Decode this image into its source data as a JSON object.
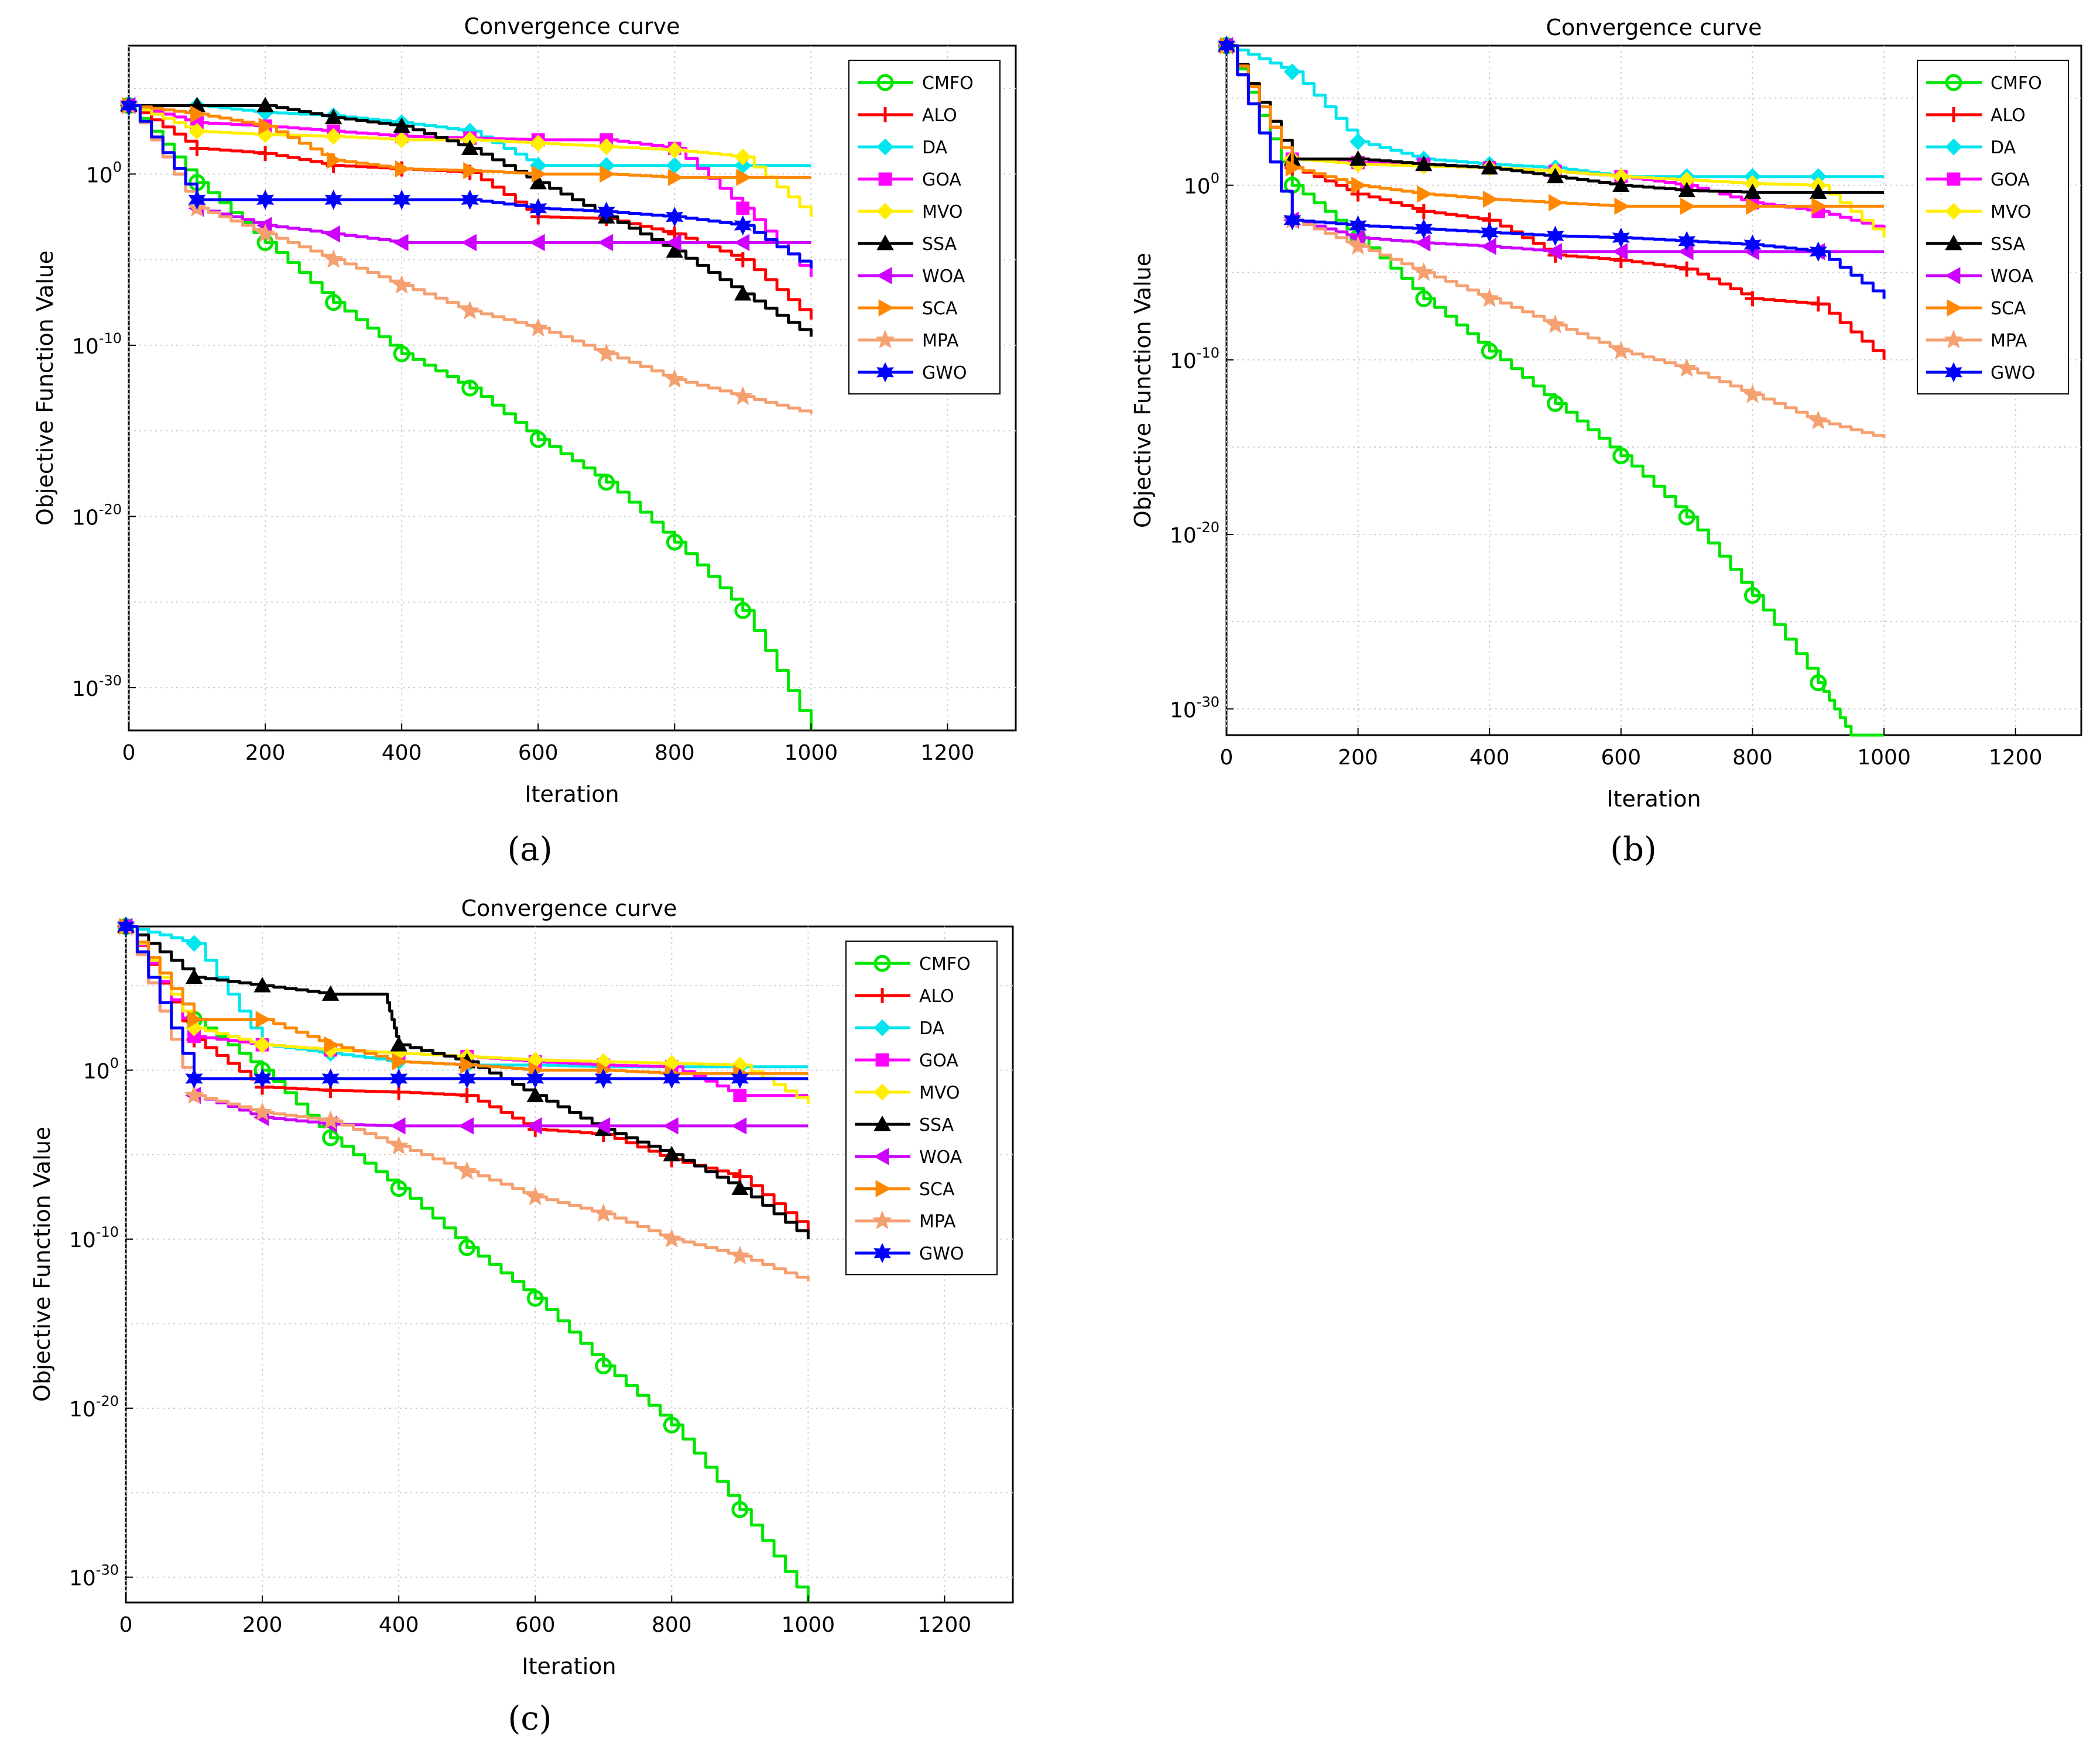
{
  "chart_data": [
    {
      "type": "line",
      "panel_label": "(a)",
      "title": "Convergence curve",
      "xlabel": "Iteration",
      "ylabel": "Objective Function Value",
      "yscale": "log",
      "xlim": [
        0,
        1300
      ],
      "ylim_exp": [
        -32.5,
        7.5
      ],
      "x_ticks": [
        0,
        200,
        400,
        600,
        800,
        1000,
        1200
      ],
      "y_tick_exps": [
        0,
        -10,
        -20,
        -30
      ],
      "grid": true,
      "legend_position": "top-right",
      "series": [
        {
          "name": "CMFO",
          "color": "#00e600",
          "marker": "circle",
          "x": [
            0,
            100,
            200,
            300,
            400,
            500,
            600,
            700,
            800,
            900,
            1000
          ],
          "y_exp": [
            4,
            -0.5,
            -4,
            -7.5,
            -10.5,
            -12.5,
            -15.5,
            -18,
            -21.5,
            -25.5,
            -32.5
          ]
        },
        {
          "name": "ALO",
          "color": "#ff0000",
          "marker": "plus",
          "x": [
            0,
            100,
            200,
            300,
            400,
            500,
            600,
            700,
            800,
            900,
            1000
          ],
          "y_exp": [
            4,
            1.5,
            1.2,
            0.5,
            0.3,
            0.1,
            -2.5,
            -2.6,
            -3.5,
            -5,
            -8.5
          ]
        },
        {
          "name": "DA",
          "color": "#00e5ee",
          "marker": "diamond",
          "x": [
            0,
            100,
            200,
            300,
            400,
            500,
            600,
            700,
            800,
            900,
            1000
          ],
          "y_exp": [
            4,
            4,
            3.6,
            3.4,
            3.0,
            2.5,
            0.5,
            0.5,
            0.5,
            0.5,
            0.5
          ]
        },
        {
          "name": "GOA",
          "color": "#ff00ff",
          "marker": "square",
          "x": [
            0,
            100,
            200,
            300,
            400,
            500,
            600,
            700,
            800,
            900,
            1000
          ],
          "y_exp": [
            4,
            3,
            2.8,
            2.5,
            2.2,
            2.1,
            2.0,
            2.0,
            1.5,
            -2,
            -6
          ]
        },
        {
          "name": "MVO",
          "color": "#ffee00",
          "marker": "diamond",
          "x": [
            0,
            100,
            200,
            300,
            400,
            500,
            600,
            700,
            800,
            900,
            1000
          ],
          "y_exp": [
            4,
            2.5,
            2.3,
            2.2,
            2.0,
            2.0,
            1.8,
            1.6,
            1.4,
            1.0,
            -2.5
          ]
        },
        {
          "name": "SSA",
          "color": "#000000",
          "marker": "triangle-up",
          "x": [
            0,
            100,
            200,
            300,
            400,
            500,
            600,
            700,
            800,
            900,
            1000
          ],
          "y_exp": [
            4,
            4,
            4,
            3.3,
            2.8,
            1.5,
            -0.5,
            -2.5,
            -4.5,
            -7,
            -9.5
          ]
        },
        {
          "name": "WOA",
          "color": "#cc00ff",
          "marker": "triangle-left",
          "x": [
            0,
            100,
            200,
            300,
            400,
            500,
            600,
            700,
            800,
            900,
            1000
          ],
          "y_exp": [
            4,
            -2,
            -3,
            -3.5,
            -4,
            -4,
            -4,
            -4,
            -4,
            -4,
            -4
          ]
        },
        {
          "name": "SCA",
          "color": "#ff8800",
          "marker": "triangle-right",
          "x": [
            0,
            100,
            200,
            300,
            400,
            500,
            600,
            700,
            800,
            900,
            1000
          ],
          "y_exp": [
            4,
            3.5,
            2.8,
            0.8,
            0.3,
            0.2,
            0,
            0,
            -0.2,
            -0.2,
            -0.2
          ]
        },
        {
          "name": "MPA",
          "color": "#f5a070",
          "marker": "star",
          "x": [
            0,
            100,
            200,
            300,
            400,
            500,
            600,
            700,
            800,
            900,
            1000
          ],
          "y_exp": [
            4,
            -2,
            -3.5,
            -5,
            -6.5,
            -8,
            -9,
            -10.5,
            -12,
            -13,
            -14
          ]
        },
        {
          "name": "GWO",
          "color": "#0000ff",
          "marker": "hexagram",
          "x": [
            0,
            100,
            200,
            300,
            400,
            500,
            600,
            700,
            800,
            900,
            1000
          ],
          "y_exp": [
            4,
            -1.5,
            -1.5,
            -1.5,
            -1.5,
            -1.5,
            -2,
            -2.2,
            -2.5,
            -3,
            -5.5
          ]
        }
      ]
    },
    {
      "type": "line",
      "panel_label": "(b)",
      "title": "Convergence curve",
      "xlabel": "Iteration",
      "ylabel": "Objective Function Value",
      "yscale": "log",
      "xlim": [
        0,
        1300
      ],
      "ylim_exp": [
        -31.5,
        8
      ],
      "x_ticks": [
        0,
        200,
        400,
        600,
        800,
        1000,
        1200
      ],
      "y_tick_exps": [
        0,
        -10,
        -20,
        -30
      ],
      "grid": true,
      "legend_position": "top-right",
      "series": [
        {
          "name": "CMFO",
          "color": "#00e600",
          "marker": "circle",
          "x": [
            0,
            100,
            200,
            300,
            400,
            500,
            600,
            700,
            800,
            900,
            950,
            1000
          ],
          "y_exp": [
            8,
            0,
            -3,
            -6.5,
            -9.5,
            -12.5,
            -15.5,
            -19,
            -23.5,
            -28.5,
            -31.5,
            -31.5
          ]
        },
        {
          "name": "ALO",
          "color": "#ff0000",
          "marker": "plus",
          "x": [
            0,
            100,
            200,
            300,
            400,
            500,
            600,
            700,
            800,
            900,
            1000
          ],
          "y_exp": [
            8,
            1,
            -0.5,
            -1.5,
            -2,
            -4,
            -4.3,
            -4.8,
            -6.5,
            -6.8,
            -10
          ]
        },
        {
          "name": "DA",
          "color": "#00e5ee",
          "marker": "diamond",
          "x": [
            0,
            100,
            200,
            300,
            400,
            500,
            600,
            700,
            800,
            900,
            1000
          ],
          "y_exp": [
            8,
            6.5,
            2.5,
            1.5,
            1.2,
            1,
            0.5,
            0.5,
            0.5,
            0.5,
            0.5
          ]
        },
        {
          "name": "GOA",
          "color": "#ff00ff",
          "marker": "square",
          "x": [
            0,
            100,
            200,
            300,
            400,
            500,
            600,
            700,
            800,
            900,
            1000
          ],
          "y_exp": [
            8,
            1.5,
            1.3,
            1.2,
            1.0,
            0.8,
            0.5,
            0,
            -1,
            -1.5,
            -2.5
          ]
        },
        {
          "name": "MVO",
          "color": "#ffee00",
          "marker": "diamond",
          "x": [
            0,
            100,
            200,
            300,
            400,
            500,
            600,
            700,
            800,
            900,
            1000
          ],
          "y_exp": [
            8,
            1.5,
            1.2,
            1.1,
            1.0,
            0.8,
            0.5,
            0.3,
            0.1,
            0,
            -3
          ]
        },
        {
          "name": "SSA",
          "color": "#000000",
          "marker": "triangle-up",
          "x": [
            0,
            100,
            200,
            300,
            400,
            500,
            600,
            700,
            800,
            900,
            1000
          ],
          "y_exp": [
            8,
            1.5,
            1.5,
            1.2,
            1,
            0.5,
            0,
            -0.3,
            -0.4,
            -0.4,
            -0.4
          ]
        },
        {
          "name": "WOA",
          "color": "#cc00ff",
          "marker": "triangle-left",
          "x": [
            0,
            100,
            200,
            300,
            400,
            500,
            600,
            700,
            800,
            900,
            1000
          ],
          "y_exp": [
            8,
            -2,
            -3,
            -3.3,
            -3.5,
            -3.8,
            -3.8,
            -3.8,
            -3.8,
            -3.8,
            -3.8
          ]
        },
        {
          "name": "SCA",
          "color": "#ff8800",
          "marker": "triangle-right",
          "x": [
            0,
            100,
            200,
            300,
            400,
            500,
            600,
            700,
            800,
            900,
            1000
          ],
          "y_exp": [
            8,
            1,
            0,
            -0.5,
            -0.8,
            -1,
            -1.2,
            -1.2,
            -1.2,
            -1.2,
            -1.2
          ]
        },
        {
          "name": "MPA",
          "color": "#f5a070",
          "marker": "star",
          "x": [
            0,
            100,
            200,
            300,
            400,
            500,
            600,
            700,
            800,
            900,
            1000
          ],
          "y_exp": [
            8,
            -2,
            -3.5,
            -5,
            -6.5,
            -8,
            -9.5,
            -10.5,
            -12,
            -13.5,
            -14.5
          ]
        },
        {
          "name": "GWO",
          "color": "#0000ff",
          "marker": "hexagram",
          "x": [
            0,
            100,
            200,
            300,
            400,
            500,
            600,
            700,
            800,
            900,
            1000
          ],
          "y_exp": [
            8,
            -2,
            -2.3,
            -2.5,
            -2.7,
            -2.9,
            -3,
            -3.2,
            -3.4,
            -3.8,
            -6.5
          ]
        }
      ]
    },
    {
      "type": "line",
      "panel_label": "(c)",
      "title": "Convergence curve",
      "xlabel": "Iteration",
      "ylabel": "Objective Function Value",
      "yscale": "log",
      "xlim": [
        0,
        1300
      ],
      "ylim_exp": [
        -31.5,
        8.5
      ],
      "x_ticks": [
        0,
        200,
        400,
        600,
        800,
        1000,
        1200
      ],
      "y_tick_exps": [
        0,
        -10,
        -20,
        -30
      ],
      "grid": true,
      "legend_position": "top-right",
      "series": [
        {
          "name": "CMFO",
          "color": "#00e600",
          "marker": "circle",
          "x": [
            0,
            100,
            200,
            300,
            400,
            500,
            600,
            700,
            800,
            900,
            1000
          ],
          "y_exp": [
            8.5,
            3,
            0,
            -4,
            -7,
            -10.5,
            -13.5,
            -17.5,
            -21,
            -26,
            -31.5
          ]
        },
        {
          "name": "ALO",
          "color": "#ff0000",
          "marker": "plus",
          "x": [
            0,
            100,
            200,
            300,
            400,
            500,
            600,
            700,
            800,
            900,
            1000
          ],
          "y_exp": [
            8.5,
            1.8,
            -1,
            -1.2,
            -1.3,
            -1.5,
            -3.5,
            -3.8,
            -5.3,
            -6.3,
            -9.5
          ]
        },
        {
          "name": "DA",
          "color": "#00e5ee",
          "marker": "diamond",
          "x": [
            0,
            100,
            200,
            300,
            400,
            500,
            600,
            700,
            800,
            900,
            1000
          ],
          "y_exp": [
            8.5,
            7.5,
            1.5,
            1,
            0.5,
            0.3,
            0.3,
            0.2,
            0.2,
            0.2,
            0.2
          ]
        },
        {
          "name": "GOA",
          "color": "#ff00ff",
          "marker": "square",
          "x": [
            0,
            100,
            200,
            300,
            400,
            500,
            600,
            700,
            800,
            900,
            1000
          ],
          "y_exp": [
            8.5,
            2,
            1.5,
            1.2,
            1,
            0.8,
            0.5,
            0.3,
            0.2,
            -1.5,
            -1.5
          ]
        },
        {
          "name": "MVO",
          "color": "#ffee00",
          "marker": "diamond",
          "x": [
            0,
            100,
            200,
            300,
            400,
            500,
            600,
            700,
            800,
            900,
            1000
          ],
          "y_exp": [
            8.5,
            2.5,
            1.5,
            1.2,
            1,
            0.8,
            0.6,
            0.5,
            0.4,
            0.3,
            -2
          ]
        },
        {
          "name": "SSA",
          "color": "#000000",
          "marker": "triangle-up",
          "x": [
            0,
            100,
            200,
            300,
            380,
            400,
            500,
            600,
            700,
            800,
            900,
            1000
          ],
          "y_exp": [
            8.5,
            5.5,
            5,
            4.5,
            4.5,
            1.5,
            0.5,
            -1.5,
            -3.5,
            -5,
            -7,
            -10
          ]
        },
        {
          "name": "WOA",
          "color": "#cc00ff",
          "marker": "triangle-left",
          "x": [
            0,
            100,
            200,
            300,
            400,
            500,
            600,
            700,
            800,
            900,
            1000
          ],
          "y_exp": [
            8.5,
            -1.5,
            -2.8,
            -3.2,
            -3.3,
            -3.3,
            -3.3,
            -3.3,
            -3.3,
            -3.3,
            -3.3
          ]
        },
        {
          "name": "SCA",
          "color": "#ff8800",
          "marker": "triangle-right",
          "x": [
            0,
            100,
            200,
            300,
            400,
            500,
            600,
            700,
            800,
            900,
            1000
          ],
          "y_exp": [
            8.5,
            3,
            3,
            1.5,
            0.5,
            0.3,
            0,
            0,
            -0.2,
            -0.2,
            -0.2
          ]
        },
        {
          "name": "MPA",
          "color": "#f5a070",
          "marker": "star",
          "x": [
            0,
            100,
            200,
            300,
            400,
            500,
            600,
            700,
            800,
            900,
            1000
          ],
          "y_exp": [
            8.5,
            -1.5,
            -2.5,
            -3,
            -4.5,
            -6,
            -7.5,
            -8.5,
            -10,
            -11,
            -12.5
          ]
        },
        {
          "name": "GWO",
          "color": "#0000ff",
          "marker": "hexagram",
          "x": [
            0,
            100,
            200,
            300,
            400,
            500,
            600,
            700,
            800,
            900,
            1000
          ],
          "y_exp": [
            8.5,
            -0.5,
            -0.5,
            -0.5,
            -0.5,
            -0.5,
            -0.5,
            -0.5,
            -0.5,
            -0.5,
            -0.5
          ]
        }
      ]
    }
  ]
}
